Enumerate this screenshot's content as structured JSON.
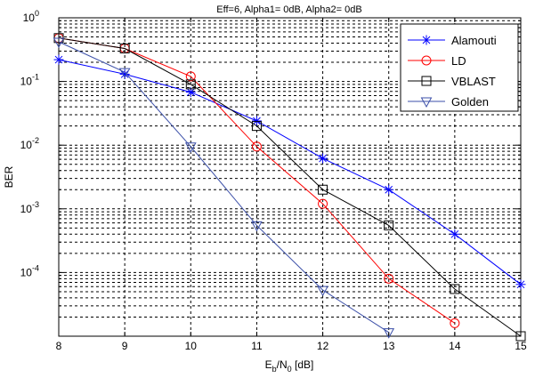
{
  "chart_data": {
    "type": "line",
    "title": "Eff=6, Alpha1= 0dB, Alpha2= 0dB",
    "xlabel": {
      "main": "E",
      "sub1": "b",
      "mid": "/N",
      "sub2": "0",
      "tail": " [dB]"
    },
    "ylabel": "BER",
    "y_scale": "log",
    "xlim": [
      8,
      15
    ],
    "ylim": [
      1e-05,
      1
    ],
    "grid": true,
    "legend_position": "top-right",
    "x_ticks": [
      "8",
      "9",
      "10",
      "11",
      "12",
      "13",
      "14",
      "15"
    ],
    "y_ticks": [
      {
        "base": "10",
        "exp": "0"
      },
      {
        "base": "10",
        "exp": "-1"
      },
      {
        "base": "10",
        "exp": "-2"
      },
      {
        "base": "10",
        "exp": "-3"
      },
      {
        "base": "10",
        "exp": "-4"
      }
    ],
    "series": [
      {
        "name": "Alamouti",
        "color": "#0000ff",
        "marker": "asterisk",
        "x": [
          8,
          9,
          10,
          11,
          12,
          13,
          14,
          15
        ],
        "y": [
          0.22,
          0.13,
          0.068,
          0.024,
          0.0062,
          0.002,
          0.0004,
          6.5e-05
        ]
      },
      {
        "name": "LD",
        "color": "#ff0000",
        "marker": "circle",
        "x": [
          8,
          9,
          10,
          11,
          12,
          13,
          14
        ],
        "y": [
          0.48,
          0.33,
          0.12,
          0.0095,
          0.0012,
          8e-05,
          1.6e-05
        ]
      },
      {
        "name": "VBLAST",
        "color": "#000000",
        "marker": "square",
        "x": [
          8,
          9,
          10,
          11,
          12,
          13,
          14,
          15
        ],
        "y": [
          0.48,
          0.33,
          0.09,
          0.02,
          0.002,
          0.00055,
          5.5e-05,
          1e-05
        ]
      },
      {
        "name": "Golden",
        "color": "#3b4fa8",
        "marker": "triangle-down",
        "x": [
          8,
          9,
          10,
          11,
          12,
          13
        ],
        "y": [
          0.42,
          0.14,
          0.0095,
          0.00055,
          5.3e-05,
          1.15e-05
        ]
      }
    ]
  }
}
